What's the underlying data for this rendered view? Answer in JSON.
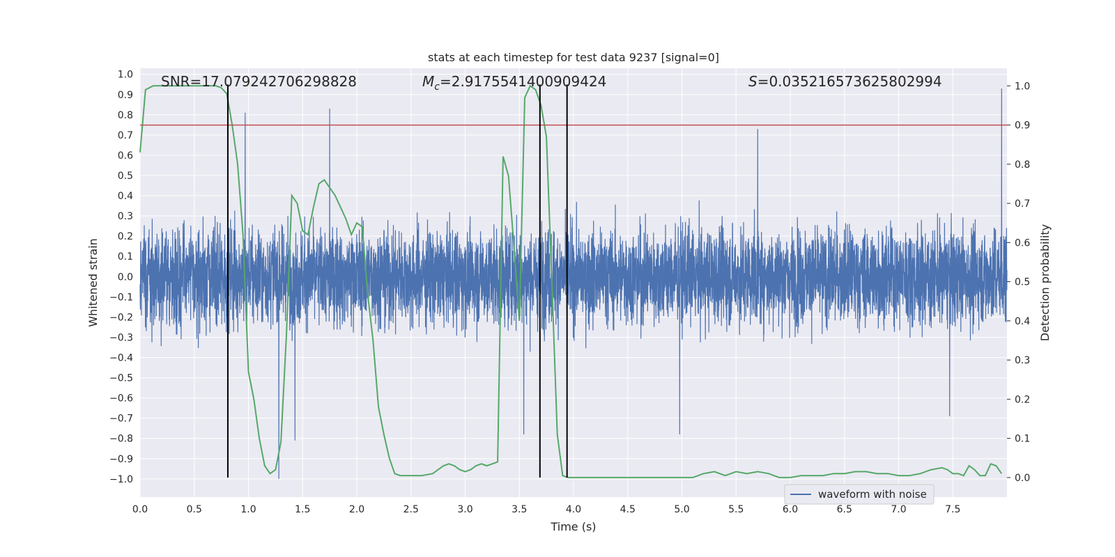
{
  "chart_data": {
    "type": "line",
    "title": "stats at each timestep for test data 9237 [signal=0]",
    "xlabel": "Time (s)",
    "ylabel_left": "Whitened strain",
    "ylabel_right": "Detection probability",
    "xlim": [
      0.0,
      8.0
    ],
    "ylim_left": [
      -1.09,
      1.03
    ],
    "ylim_right": [
      -0.05,
      1.045
    ],
    "x_ticks": [
      0.0,
      0.5,
      1.0,
      1.5,
      2.0,
      2.5,
      3.0,
      3.5,
      4.0,
      4.5,
      5.0,
      5.5,
      6.0,
      6.5,
      7.0,
      7.5
    ],
    "x_tick_labels": [
      "0.0",
      "0.5",
      "1.0",
      "1.5",
      "2.0",
      "2.5",
      "3.0",
      "3.5",
      "4.0",
      "4.5",
      "5.0",
      "5.5",
      "6.0",
      "6.5",
      "7.0",
      "7.5"
    ],
    "y_left_ticks": [
      1.0,
      0.9,
      0.8,
      0.7,
      0.6,
      0.5,
      0.4,
      0.3,
      0.2,
      0.1,
      0.0,
      -0.1,
      -0.2,
      -0.3,
      -0.4,
      -0.5,
      -0.6,
      -0.7,
      -0.8,
      -0.9,
      -1.0
    ],
    "y_left_tick_labels": [
      "1.0",
      "0.9",
      "0.8",
      "0.7",
      "0.6",
      "0.5",
      "0.4",
      "0.3",
      "0.2",
      "0.1",
      "0.0",
      "−0.1",
      "−0.2",
      "−0.3",
      "−0.4",
      "−0.5",
      "−0.6",
      "−0.7",
      "−0.8",
      "−0.9",
      "−1.0"
    ],
    "y_right_ticks": [
      1.0,
      0.9,
      0.8,
      0.7,
      0.6,
      0.5,
      0.4,
      0.3,
      0.2,
      0.1,
      0.0
    ],
    "y_right_tick_labels": [
      "1.0",
      "0.9",
      "0.8",
      "0.7",
      "0.6",
      "0.5",
      "0.4",
      "0.3",
      "0.2",
      "0.1",
      "0.0"
    ],
    "annotations": {
      "snr": "SNR=17.079242706298828",
      "mc_symbol": "M",
      "mc_subscript": "c",
      "mc_value": "=2.9175541400909424",
      "s_symbol": "S",
      "s_value": "=0.035216573625802994"
    },
    "threshold": {
      "value": 0.9,
      "axis": "right",
      "color": "#c44e52"
    },
    "vertical_lines": [
      0.81,
      3.69,
      3.94
    ],
    "waveform": {
      "name": "waveform with noise",
      "color": "#4c72b0",
      "noise_sigma": 0.23,
      "spikes": [
        [
          0.97,
          0.81
        ],
        [
          1.28,
          -1.0
        ],
        [
          1.43,
          -0.81
        ],
        [
          1.75,
          0.83
        ],
        [
          3.54,
          -0.78
        ],
        [
          4.98,
          -0.78
        ],
        [
          5.7,
          0.73
        ],
        [
          7.47,
          -0.69
        ],
        [
          7.95,
          0.93
        ]
      ]
    },
    "series": [
      {
        "name": "Detection probability",
        "axis": "right",
        "color": "#55a868",
        "x": [
          0.0,
          0.05,
          0.12,
          0.2,
          0.3,
          0.4,
          0.5,
          0.6,
          0.7,
          0.75,
          0.8,
          0.85,
          0.9,
          0.95,
          1.0,
          1.05,
          1.1,
          1.15,
          1.2,
          1.25,
          1.3,
          1.35,
          1.4,
          1.45,
          1.5,
          1.55,
          1.6,
          1.65,
          1.7,
          1.75,
          1.8,
          1.85,
          1.9,
          1.95,
          2.0,
          2.05,
          2.1,
          2.15,
          2.2,
          2.25,
          2.3,
          2.35,
          2.4,
          2.5,
          2.6,
          2.7,
          2.8,
          2.85,
          2.9,
          2.95,
          3.0,
          3.05,
          3.1,
          3.15,
          3.2,
          3.25,
          3.3,
          3.35,
          3.4,
          3.45,
          3.5,
          3.55,
          3.6,
          3.65,
          3.7,
          3.75,
          3.8,
          3.85,
          3.9,
          3.95,
          4.0,
          4.05,
          4.1,
          4.15,
          4.2,
          4.25,
          4.3,
          4.4,
          4.5,
          4.6,
          4.7,
          4.8,
          4.9,
          5.0,
          5.1,
          5.2,
          5.3,
          5.4,
          5.5,
          5.6,
          5.7,
          5.8,
          5.9,
          6.0,
          6.1,
          6.2,
          6.3,
          6.4,
          6.5,
          6.6,
          6.7,
          6.8,
          6.9,
          7.0,
          7.1,
          7.2,
          7.3,
          7.4,
          7.45,
          7.5,
          7.55,
          7.6,
          7.65,
          7.7,
          7.75,
          7.8,
          7.85,
          7.9,
          7.95
        ],
        "values": [
          0.83,
          0.99,
          1.0,
          1.0,
          1.0,
          1.0,
          1.0,
          1.0,
          1.0,
          0.995,
          0.98,
          0.9,
          0.8,
          0.62,
          0.27,
          0.2,
          0.1,
          0.03,
          0.01,
          0.02,
          0.09,
          0.36,
          0.72,
          0.7,
          0.63,
          0.62,
          0.69,
          0.75,
          0.76,
          0.74,
          0.72,
          0.69,
          0.66,
          0.62,
          0.65,
          0.64,
          0.47,
          0.35,
          0.18,
          0.11,
          0.05,
          0.01,
          0.005,
          0.005,
          0.005,
          0.01,
          0.03,
          0.035,
          0.03,
          0.02,
          0.015,
          0.02,
          0.03,
          0.035,
          0.03,
          0.035,
          0.04,
          0.82,
          0.77,
          0.59,
          0.4,
          0.97,
          1.0,
          0.99,
          0.95,
          0.87,
          0.5,
          0.11,
          0.005,
          0.0,
          0.0,
          0.0,
          0.0,
          0.0,
          0.0,
          0.0,
          0.0,
          0.0,
          0.0,
          0.0,
          0.0,
          0.0,
          0.0,
          0.0,
          0.0,
          0.01,
          0.015,
          0.005,
          0.015,
          0.01,
          0.015,
          0.01,
          0.0,
          0.0,
          0.005,
          0.005,
          0.005,
          0.01,
          0.01,
          0.015,
          0.015,
          0.01,
          0.01,
          0.005,
          0.005,
          0.01,
          0.02,
          0.025,
          0.02,
          0.01,
          0.01,
          0.005,
          0.03,
          0.02,
          0.005,
          0.005,
          0.035,
          0.03,
          0.01
        ]
      }
    ],
    "legend": {
      "label": "waveform with noise",
      "placement": "lower-center-right"
    },
    "grid": true
  }
}
